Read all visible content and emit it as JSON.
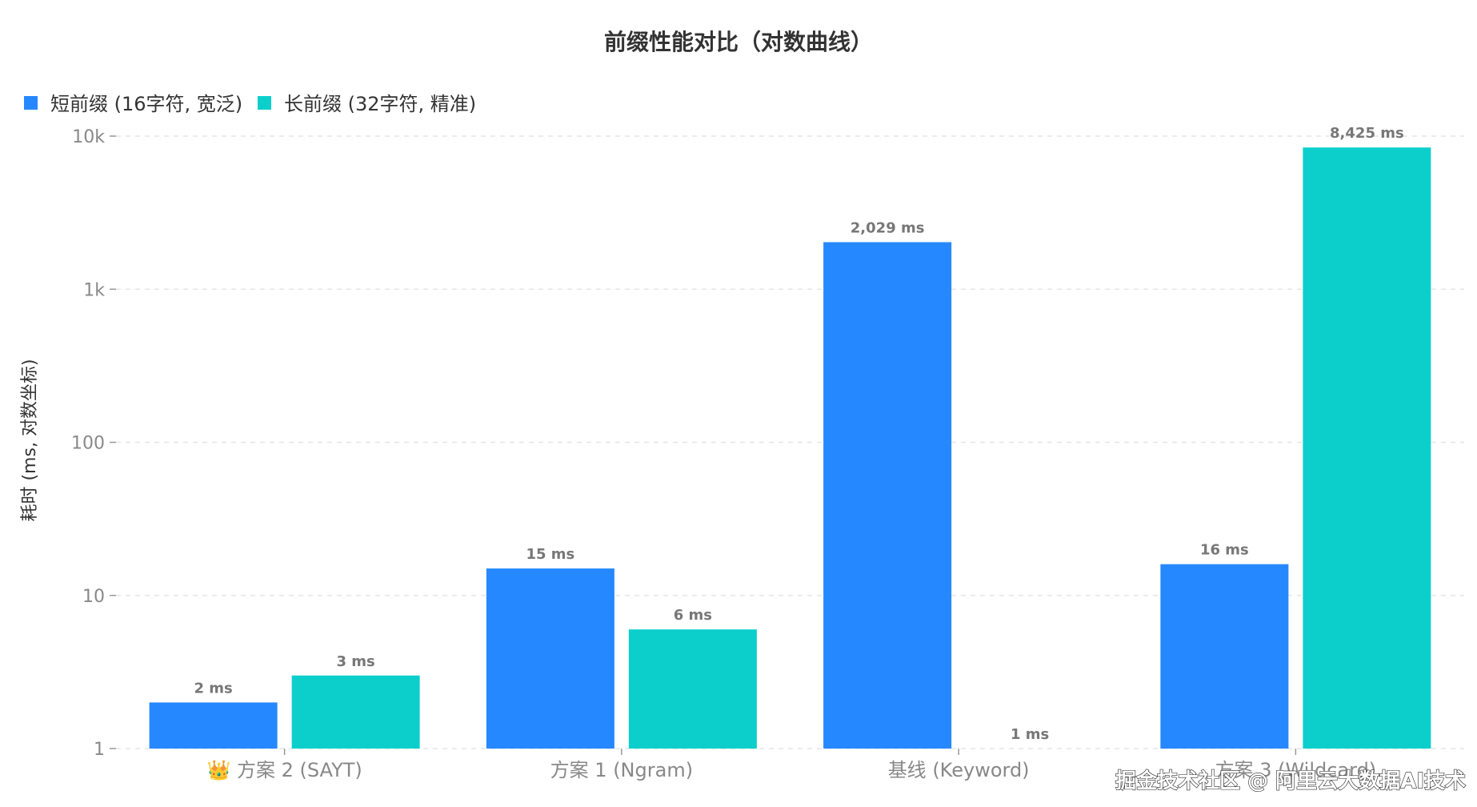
{
  "colors": {
    "short": "#2688ff",
    "long": "#0ccfcc"
  },
  "chart_data": {
    "type": "bar",
    "title": "前缀性能对比（对数曲线）",
    "ylabel": "耗时 (ms, 对数坐标)",
    "yscale": "log",
    "ylim": [
      1,
      10000
    ],
    "yticks": [
      {
        "value": 1,
        "label": "1"
      },
      {
        "value": 10,
        "label": "10"
      },
      {
        "value": 100,
        "label": "100"
      },
      {
        "value": 1000,
        "label": "1k"
      },
      {
        "value": 10000,
        "label": "10k"
      }
    ],
    "grid": true,
    "legend_position": "top-left",
    "categories": [
      "👑 方案 2 (SAYT)",
      "方案 1 (Ngram)",
      "基线 (Keyword)",
      "方案 3 (Wildcard)"
    ],
    "series": [
      {
        "name": "短前缀 (16字符, 宽泛)",
        "values": [
          2,
          15,
          2029,
          16
        ],
        "labels": [
          "2 ms",
          "15 ms",
          "2,029 ms",
          "16 ms"
        ]
      },
      {
        "name": "长前缀 (32字符, 精准)",
        "values": [
          3,
          6,
          1,
          8425
        ],
        "labels": [
          "3 ms",
          "6 ms",
          "1 ms",
          "8,425 ms"
        ]
      }
    ]
  },
  "watermark": "掘金技术社区 @ 阿里云大数据AI技术"
}
